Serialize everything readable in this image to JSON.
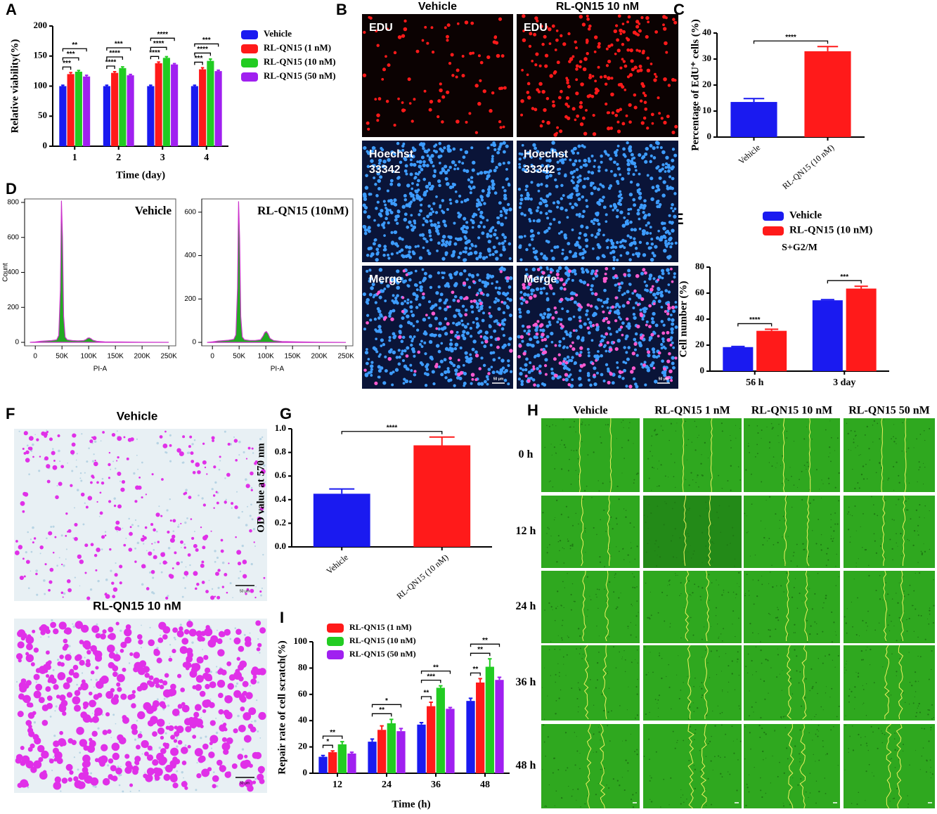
{
  "panel_labels": [
    "A",
    "B",
    "C",
    "D",
    "E",
    "F",
    "G",
    "H",
    "I"
  ],
  "panel_B": {
    "columns": [
      "Vehicle",
      "RL-QN15 10 nM"
    ],
    "rows": [
      [
        "EDU"
      ],
      [
        "Hoechst",
        "33342"
      ],
      [
        "Merge"
      ]
    ],
    "scale": "50 μm"
  },
  "panel_F": {
    "titles": [
      "Vehicle",
      "RL-QN15 10 nM"
    ],
    "scale": "50 μm"
  },
  "panel_H": {
    "columns": [
      "Vehicle",
      "RL-QN15 1 nM",
      "RL-QN15 10 nM",
      "RL-QN15 50 nM"
    ],
    "rows": [
      "0 h",
      "12 h",
      "24 h",
      "36 h",
      "48 h"
    ]
  },
  "chart_data": [
    {
      "type": "bar",
      "categories": [
        "1",
        "2",
        "3",
        "4"
      ],
      "series": [
        {
          "name": "Vehicle",
          "color": "#1a1af0",
          "values": [
            100,
            100,
            100,
            100
          ],
          "errors": [
            1.5,
            1.5,
            1.5,
            1.5
          ]
        },
        {
          "name": "RL-QN15 (1 nM)",
          "color": "#ff1a1a",
          "values": [
            120,
            122,
            138,
            128
          ],
          "errors": [
            2.5,
            2,
            2,
            2.5
          ]
        },
        {
          "name": "RL-QN15 (10 nM)",
          "color": "#22cc22",
          "values": [
            124,
            130,
            147,
            142
          ],
          "errors": [
            2,
            2,
            2,
            3
          ]
        },
        {
          "name": "RL-QN15 (50 nM)",
          "color": "#a020f0",
          "values": [
            116,
            118,
            136,
            125
          ],
          "errors": [
            2,
            1.5,
            1.5,
            1.5
          ]
        }
      ],
      "ylim": [
        0,
        200
      ],
      "yticks": [
        0,
        50,
        100,
        150,
        200
      ],
      "ylabel": "Relative viability(%)",
      "xlabel": "Time (day)",
      "legend": "right",
      "annotations": [
        {
          "category": "1",
          "between": [
            0,
            1
          ],
          "text": "***"
        },
        {
          "category": "1",
          "between": [
            0,
            2
          ],
          "text": "***"
        },
        {
          "category": "1",
          "between": [
            0,
            3
          ],
          "text": "**"
        },
        {
          "category": "2",
          "between": [
            0,
            1
          ],
          "text": "****"
        },
        {
          "category": "2",
          "between": [
            0,
            2
          ],
          "text": "****"
        },
        {
          "category": "2",
          "between": [
            0,
            3
          ],
          "text": "***"
        },
        {
          "category": "3",
          "between": [
            0,
            1
          ],
          "text": "****"
        },
        {
          "category": "3",
          "between": [
            0,
            2
          ],
          "text": "****"
        },
        {
          "category": "3",
          "between": [
            0,
            3
          ],
          "text": "****"
        },
        {
          "category": "4",
          "between": [
            0,
            1
          ],
          "text": "***"
        },
        {
          "category": "4",
          "between": [
            0,
            2
          ],
          "text": "****"
        },
        {
          "category": "4",
          "between": [
            0,
            3
          ],
          "text": "***"
        }
      ]
    },
    {
      "type": "bar",
      "categories": [
        "Vehicle",
        "RL-QN15 (10 nM)"
      ],
      "values": [
        13.5,
        33
      ],
      "errors": [
        1.3,
        1.8
      ],
      "colors": [
        "#1a1af0",
        "#ff1a1a"
      ],
      "ylim": [
        0,
        40
      ],
      "yticks": [
        0,
        10,
        20,
        30,
        40
      ],
      "ylabel": "Percentage of EdU⁺ cells (%)",
      "annotations": [
        {
          "between": [
            0,
            1
          ],
          "text": "****"
        }
      ]
    },
    {
      "type": "area",
      "title": "Vehicle",
      "ylabel": "Count",
      "xlabel": "PI-A",
      "color": "#22aa22",
      "line_color": "#cc33cc",
      "x": [
        -10000,
        0,
        10000,
        20000,
        30000,
        40000,
        44000,
        47000,
        49000,
        51000,
        53000,
        56000,
        60000,
        70000,
        80000,
        90000,
        95000,
        98000,
        101000,
        104000,
        108000,
        115000,
        130000,
        160000,
        200000,
        250000
      ],
      "values": [
        0,
        2,
        6,
        8,
        10,
        14,
        40,
        300,
        810,
        600,
        150,
        30,
        14,
        10,
        9,
        10,
        16,
        24,
        26,
        22,
        12,
        6,
        3,
        2,
        1,
        0
      ],
      "xlim": [
        -20000,
        263000
      ],
      "ylim": [
        -20,
        820
      ],
      "xticks": [
        0,
        {
          "value": 50000,
          "label": "50K"
        },
        {
          "value": 100000,
          "label": "100K"
        },
        {
          "value": 150000,
          "label": "150K"
        },
        {
          "value": 200000,
          "label": "200K"
        },
        {
          "value": 250000,
          "label": "250K"
        }
      ],
      "yticks": [
        0,
        200,
        400,
        600,
        800
      ]
    },
    {
      "type": "area",
      "title": "RL-QN15 (10nM)",
      "xlabel": "PI-A",
      "color": "#22aa22",
      "line_color": "#cc33cc",
      "x": [
        -10000,
        0,
        10000,
        20000,
        30000,
        40000,
        44000,
        47000,
        49000,
        51000,
        53000,
        56000,
        60000,
        70000,
        80000,
        90000,
        95000,
        98000,
        101000,
        104000,
        108000,
        115000,
        130000,
        160000,
        200000,
        250000
      ],
      "values": [
        0,
        2,
        6,
        8,
        10,
        14,
        35,
        250,
        650,
        480,
        120,
        25,
        12,
        9,
        9,
        12,
        30,
        45,
        50,
        40,
        18,
        8,
        4,
        2,
        1,
        0
      ],
      "xlim": [
        -20000,
        263000
      ],
      "ylim": [
        -16,
        661
      ],
      "xticks": [
        0,
        {
          "value": 50000,
          "label": "50K"
        },
        {
          "value": 100000,
          "label": "100K"
        },
        {
          "value": 150000,
          "label": "150K"
        },
        {
          "value": 200000,
          "label": "200K"
        },
        {
          "value": 250000,
          "label": "250K"
        }
      ],
      "yticks": [
        0,
        200,
        400,
        600
      ]
    },
    {
      "type": "bar",
      "categories": [
        "56 h",
        "3 day"
      ],
      "subtitle": "S+G2/M",
      "series": [
        {
          "name": "Vehicle",
          "color": "#1a1af0",
          "values": [
            18.5,
            54.5
          ],
          "errors": [
            0.5,
            0.5
          ]
        },
        {
          "name": "RL-QN15 (10 nM)",
          "color": "#ff1a1a",
          "values": [
            31,
            63.5
          ],
          "errors": [
            1.2,
            1.8
          ]
        }
      ],
      "ylim": [
        0,
        80
      ],
      "yticks": [
        0,
        20,
        40,
        60,
        80
      ],
      "ylabel": "Cell number (%)",
      "legend": "top",
      "annotations": [
        {
          "category": "56 h",
          "between": [
            0,
            1
          ],
          "text": "****"
        },
        {
          "category": "3 day",
          "between": [
            0,
            1
          ],
          "text": "***"
        }
      ]
    },
    {
      "type": "bar",
      "categories": [
        "Vehicle",
        "RL-QN15 (10 nM)"
      ],
      "values": [
        0.45,
        0.86
      ],
      "errors": [
        0.04,
        0.07
      ],
      "colors": [
        "#1a1af0",
        "#ff1a1a"
      ],
      "ylim": [
        0,
        1
      ],
      "yticks": [
        {
          "value": 0,
          "label": "0.0"
        },
        0.2,
        0.4,
        0.6,
        0.8,
        {
          "value": 1,
          "label": "1.0"
        }
      ],
      "ylabel": "OD value at 570 nm",
      "annotations": [
        {
          "between": [
            0,
            1
          ],
          "text": "****"
        }
      ]
    },
    {
      "type": "bar",
      "categories": [
        "12",
        "24",
        "36",
        "48"
      ],
      "series": [
        {
          "color": "#1a1af0",
          "values": [
            12.5,
            24,
            37,
            55
          ],
          "errors": [
            1,
            2,
            1.5,
            2
          ]
        },
        {
          "name": "RL-QN15 (1 nM)",
          "color": "#ff1a1a",
          "values": [
            16,
            33,
            51,
            69
          ],
          "errors": [
            1,
            3,
            3,
            3
          ]
        },
        {
          "name": "RL-QN15 (10 nM)",
          "color": "#22cc22",
          "values": [
            22,
            38,
            65,
            81
          ],
          "errors": [
            2,
            3,
            1.5,
            6
          ]
        },
        {
          "name": "RL-QN15 (50 nM)",
          "color": "#a020f0",
          "values": [
            15,
            32,
            49,
            71
          ],
          "errors": [
            1,
            2,
            1,
            2
          ]
        }
      ],
      "ylim": [
        0,
        100
      ],
      "yticks": [
        0,
        20,
        40,
        60,
        80,
        100
      ],
      "ylabel": "Repair rate of cell scratch(%)",
      "xlabel": "Time (h)",
      "legend": "top-left",
      "annotations": [
        {
          "category": "12",
          "between": [
            0,
            1
          ],
          "text": "*"
        },
        {
          "category": "12",
          "between": [
            0,
            2
          ],
          "text": "**"
        },
        {
          "category": "24",
          "between": [
            0,
            2
          ],
          "text": "**"
        },
        {
          "category": "24",
          "between": [
            0,
            3
          ],
          "text": "*"
        },
        {
          "category": "36",
          "between": [
            0,
            1
          ],
          "text": "**"
        },
        {
          "category": "36",
          "between": [
            0,
            2
          ],
          "text": "***"
        },
        {
          "category": "36",
          "between": [
            0,
            3
          ],
          "text": "**"
        },
        {
          "category": "48",
          "between": [
            0,
            1
          ],
          "text": "**"
        },
        {
          "category": "48",
          "between": [
            0,
            2
          ],
          "text": "**"
        },
        {
          "category": "48",
          "between": [
            0,
            3
          ],
          "text": "**"
        }
      ]
    }
  ]
}
